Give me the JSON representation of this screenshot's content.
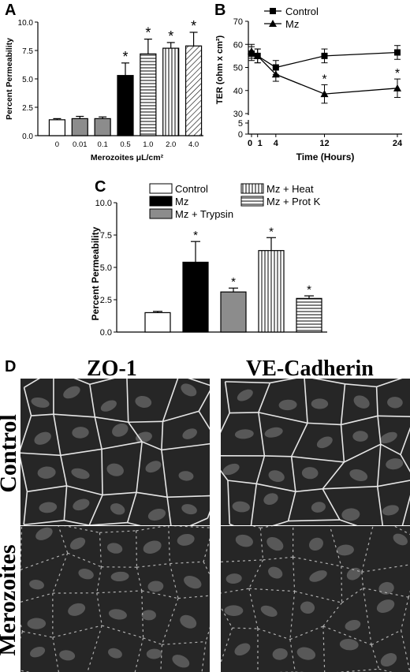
{
  "chart_data": [
    {
      "panel": "A",
      "type": "bar",
      "ylabel": "Percent Permeability",
      "xlabel": "Merozoites μL/cm²",
      "ylim": [
        0,
        10
      ],
      "yticks": [
        "0.0",
        "2.5",
        "5.0",
        "7.5",
        "10.0"
      ],
      "categories": [
        "0",
        "0.01",
        "0.1",
        "0.5",
        "1.0",
        "2.0",
        "4.0"
      ],
      "values": [
        1.4,
        1.5,
        1.5,
        5.3,
        7.2,
        7.7,
        7.9
      ],
      "errors": [
        0.1,
        0.2,
        0.15,
        1.1,
        1.3,
        0.5,
        1.2
      ],
      "fills": [
        "white",
        "gray",
        "gray",
        "black",
        "hlines",
        "vlines",
        "diag"
      ],
      "significance": [
        "",
        "",
        "",
        "*",
        "*",
        "*",
        "*"
      ]
    },
    {
      "panel": "B",
      "type": "line",
      "ylabel": "TER (ohm x cm²)",
      "xlabel": "Time (Hours)",
      "ylim": [
        0,
        70
      ],
      "yticks": [
        "0",
        "5",
        "30",
        "40",
        "50",
        "60",
        "70"
      ],
      "xticks": [
        "0",
        "1",
        "4",
        "12",
        "24"
      ],
      "legend_position": "top-right",
      "series": [
        {
          "name": "Control",
          "marker": "square",
          "x": [
            0,
            1,
            4,
            12,
            24
          ],
          "y": [
            56,
            55,
            50,
            55,
            56.5
          ],
          "err": [
            3,
            3,
            3,
            3,
            3
          ]
        },
        {
          "name": "Mz",
          "marker": "triangle",
          "x": [
            0,
            1,
            4,
            12,
            24
          ],
          "y": [
            57,
            55,
            47,
            38.5,
            41
          ],
          "err": [
            3,
            3,
            3,
            4,
            4
          ]
        }
      ],
      "significance": [
        {
          "x": 12,
          "label": "*"
        },
        {
          "x": 24,
          "label": "*"
        }
      ]
    },
    {
      "panel": "C",
      "type": "bar",
      "ylabel": "Percent Permeability",
      "ylim": [
        0,
        10
      ],
      "yticks": [
        "0.0",
        "2.5",
        "5.0",
        "7.5",
        "10.0"
      ],
      "legend_position": "top",
      "categories": [
        "Control",
        "Mz",
        "Mz + Trypsin",
        "Mz + Heat",
        "Mz + Prot K"
      ],
      "values": [
        1.5,
        5.4,
        3.1,
        6.3,
        2.6
      ],
      "errors": [
        0.1,
        1.6,
        0.3,
        1.0,
        0.2
      ],
      "fills": [
        "white",
        "black",
        "gray",
        "vlines",
        "hlines"
      ],
      "significance": [
        "",
        "*",
        "*",
        "*",
        "*"
      ]
    }
  ],
  "panel_letters": {
    "a": "A",
    "b": "B",
    "c": "C",
    "d": "D"
  },
  "micrographs": {
    "columns": [
      "ZO-1",
      "VE-Cadherin"
    ],
    "rows": [
      "Control",
      "Merozoites"
    ]
  }
}
